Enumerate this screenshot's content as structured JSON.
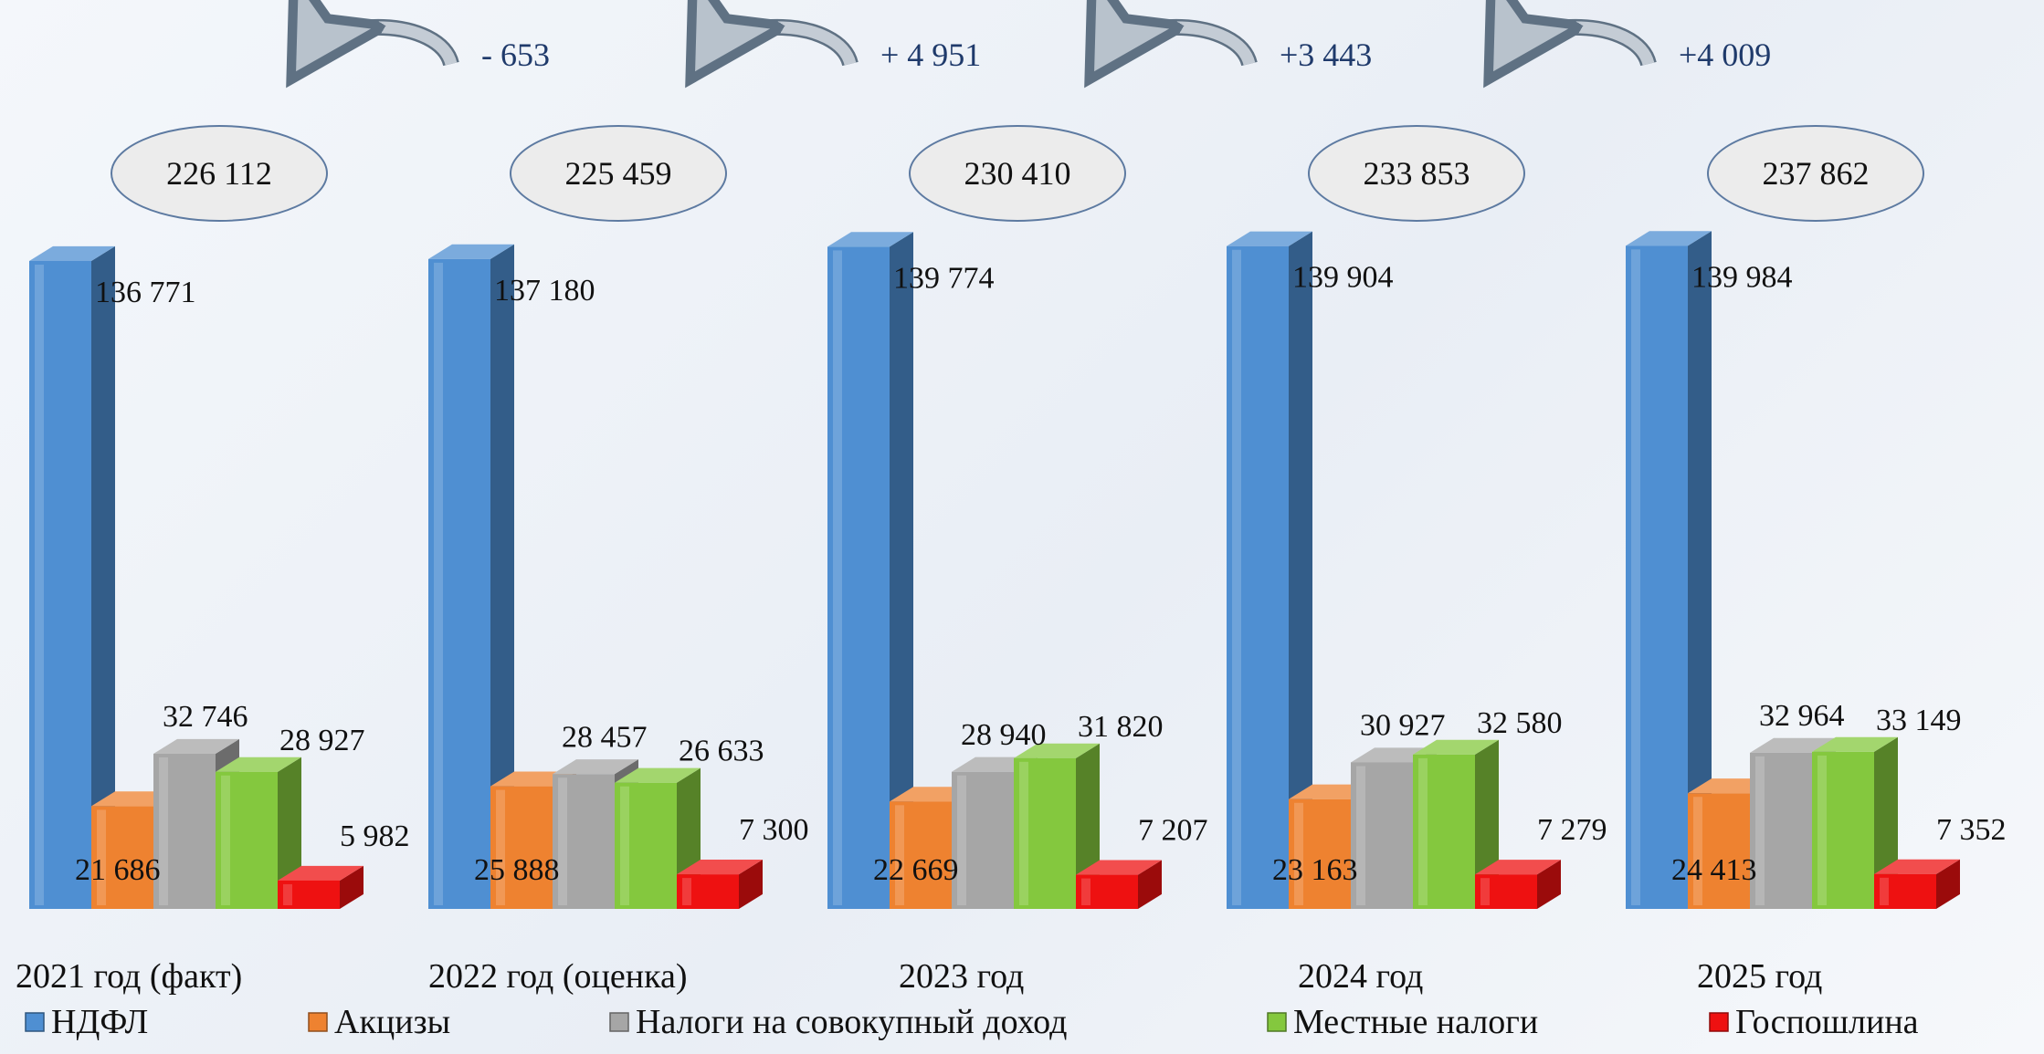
{
  "chart_data": {
    "type": "bar",
    "categories": [
      "2021 год (факт)",
      "2022 год (оценка)",
      "2023 год",
      "2024 год",
      "2025 год"
    ],
    "series": [
      {
        "name": "НДФЛ",
        "color": "#4f8fd2",
        "values": [
          136771,
          137180,
          139774,
          139904,
          139984
        ],
        "labels": [
          "136 771",
          "137 180",
          "139 774",
          "139 904",
          "139 984"
        ]
      },
      {
        "name": "Акцизы",
        "color": "#ee8230",
        "values": [
          21686,
          25888,
          22669,
          23163,
          24413
        ],
        "labels": [
          "21 686",
          "25 888",
          "22 669",
          "23 163",
          "24 413"
        ]
      },
      {
        "name": "Налоги на совокупный доход",
        "color": "#a6a6a6",
        "values": [
          32746,
          28457,
          28940,
          30927,
          32964
        ],
        "labels": [
          "32 746",
          "28 457",
          "28 940",
          "30 927",
          "32 964"
        ]
      },
      {
        "name": "Местные налоги",
        "color": "#84c83e",
        "values": [
          28927,
          26633,
          31820,
          32580,
          33149
        ],
        "labels": [
          "28 927",
          "26 633",
          "31 820",
          "32 580",
          "33 149"
        ]
      },
      {
        "name": "Госпошлина",
        "color": "#ee1111",
        "values": [
          5982,
          7300,
          7207,
          7279,
          7352
        ],
        "labels": [
          "5 982",
          "7 300",
          "7 207",
          "7 279",
          "7 352"
        ]
      }
    ],
    "totals": [
      "226 112",
      "225 459",
      "230 410",
      "233 853",
      "237 862"
    ],
    "changes": [
      "- 653",
      "+ 4 951",
      "+3 443",
      "+4 009"
    ],
    "legend_position": "bottom",
    "grid": false
  }
}
